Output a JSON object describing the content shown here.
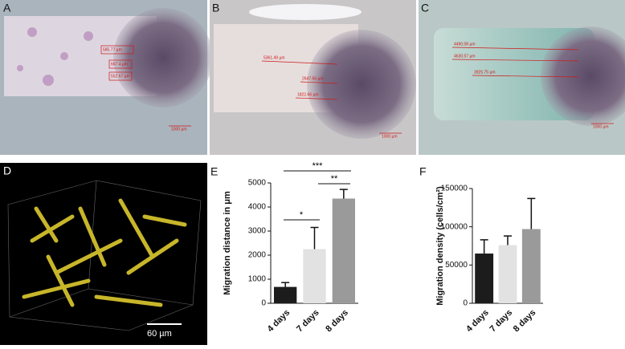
{
  "panels": {
    "a": "A",
    "b": "B",
    "c": "C",
    "d": "D"
  },
  "images": {
    "a": [
      "585.77 µm",
      "667.4 µm",
      "552.67 µm",
      "1000 µm"
    ],
    "b": [
      "5361.49 µm",
      "2647.56 µm",
      "1822.66 µm",
      "1000 µm"
    ],
    "c": [
      "4490.08 µm",
      "4630.57 µm",
      "3925.75 µm",
      "1000 µm"
    ],
    "d_scale": "60 µm"
  },
  "chart_data": [
    {
      "type": "bar",
      "panel": "E",
      "y_label": "Migration distance in μm",
      "categories": [
        "4 days",
        "7 days",
        "8 days"
      ],
      "values": [
        680,
        2250,
        4350
      ],
      "errors": [
        180,
        900,
        380
      ],
      "colors": [
        "#1c1c1c",
        "#e2e2e2",
        "#9a9a9a"
      ],
      "ylim": [
        0,
        5000
      ],
      "yticks": [
        0,
        1000,
        2000,
        3000,
        4000,
        5000
      ],
      "significance": [
        "*",
        "**",
        "***"
      ]
    },
    {
      "type": "bar",
      "panel": "F",
      "y_label": "Migration density (cells/cm²)",
      "categories": [
        "4 days",
        "7 days",
        "8 days"
      ],
      "values": [
        65000,
        76000,
        97000
      ],
      "errors": [
        18000,
        12000,
        40000
      ],
      "colors": [
        "#1c1c1c",
        "#e2e2e2",
        "#9a9a9a"
      ],
      "ylim": [
        0,
        150000
      ],
      "yticks": [
        0,
        50000,
        100000,
        150000
      ]
    }
  ]
}
